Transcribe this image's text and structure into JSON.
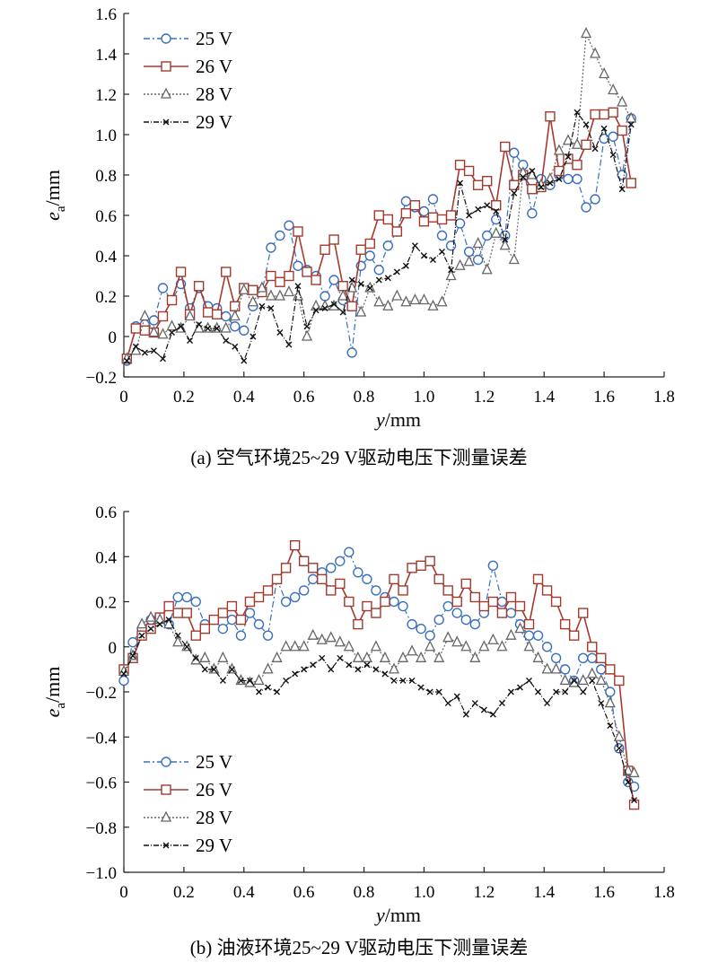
{
  "chart_data": [
    {
      "type": "line",
      "caption": "(a) 空气环境25~29 V驱动电压下测量误差",
      "xlabel": "y/mm",
      "ylabel": "e_a/mm",
      "xlim": [
        0,
        1.8
      ],
      "ylim": [
        -0.2,
        1.6
      ],
      "xticks": [
        "0",
        "0.2",
        "0.4",
        "0.6",
        "0.8",
        "1.0",
        "1.2",
        "1.4",
        "1.6",
        "1.8"
      ],
      "yticks": [
        "−0.2",
        "0",
        "0.2",
        "0.4",
        "0.6",
        "0.8",
        "1.0",
        "1.2",
        "1.4",
        "1.6"
      ],
      "legend_position": "top-left",
      "x": [
        0.01,
        0.04,
        0.07,
        0.1,
        0.13,
        0.16,
        0.19,
        0.22,
        0.25,
        0.28,
        0.31,
        0.34,
        0.37,
        0.4,
        0.43,
        0.46,
        0.49,
        0.52,
        0.55,
        0.58,
        0.61,
        0.64,
        0.67,
        0.7,
        0.73,
        0.76,
        0.79,
        0.82,
        0.85,
        0.88,
        0.91,
        0.94,
        0.97,
        1.0,
        1.03,
        1.06,
        1.09,
        1.12,
        1.15,
        1.18,
        1.21,
        1.24,
        1.27,
        1.3,
        1.33,
        1.36,
        1.39,
        1.42,
        1.45,
        1.48,
        1.51,
        1.54,
        1.57,
        1.6,
        1.63,
        1.66,
        1.69
      ],
      "series": [
        {
          "name": "25 V",
          "color": "#3a6fc0",
          "marker": "circle",
          "dash": "7,3,2,3",
          "values": [
            -0.12,
            0.05,
            0.06,
            0.08,
            0.24,
            0.18,
            0.26,
            0.14,
            0.24,
            0.15,
            0.14,
            0.1,
            0.05,
            0.03,
            0.15,
            0.22,
            0.44,
            0.5,
            0.55,
            0.35,
            0.33,
            0.3,
            0.2,
            0.28,
            0.18,
            -0.08,
            0.35,
            0.4,
            0.33,
            0.45,
            0.52,
            0.67,
            0.64,
            0.62,
            0.68,
            0.5,
            0.45,
            0.56,
            0.42,
            0.38,
            0.5,
            0.58,
            0.5,
            0.91,
            0.85,
            0.61,
            0.78,
            0.75,
            0.8,
            0.78,
            0.78,
            0.64,
            0.68,
            0.98,
            0.99,
            0.8,
            1.08
          ]
        },
        {
          "name": "26 V",
          "color": "#a33a2e",
          "marker": "square",
          "dash": "",
          "values": [
            -0.11,
            0.04,
            0.03,
            0.02,
            0.1,
            0.18,
            0.32,
            0.11,
            0.25,
            0.12,
            0.11,
            0.32,
            0.15,
            0.24,
            0.23,
            0.22,
            0.3,
            0.27,
            0.3,
            0.52,
            0.32,
            0.28,
            0.43,
            0.48,
            0.25,
            0.15,
            0.43,
            0.46,
            0.6,
            0.58,
            0.52,
            0.61,
            0.65,
            0.57,
            0.59,
            0.58,
            0.6,
            0.85,
            0.82,
            0.75,
            0.77,
            0.65,
            0.94,
            0.75,
            0.8,
            0.73,
            0.74,
            1.09,
            0.82,
            0.88,
            0.85,
            0.95,
            1.1,
            1.1,
            1.11,
            1.02,
            0.76
          ]
        },
        {
          "name": "28 V",
          "color": "#666666",
          "marker": "triangle",
          "dash": "2,2",
          "values": [
            -0.11,
            -0.07,
            0.1,
            0.02,
            0.01,
            0.05,
            0.04,
            0.1,
            0.04,
            0.04,
            0.04,
            0.04,
            0.1,
            0.23,
            0.17,
            0.24,
            0.2,
            0.2,
            0.22,
            0.2,
            0.0,
            0.15,
            0.15,
            0.15,
            0.2,
            0.24,
            0.12,
            0.24,
            0.17,
            0.15,
            0.2,
            0.17,
            0.18,
            0.18,
            0.15,
            0.17,
            0.3,
            0.35,
            0.37,
            0.46,
            0.33,
            0.51,
            0.45,
            0.38,
            0.81,
            0.8,
            0.75,
            0.78,
            0.92,
            0.97,
            0.95,
            1.5,
            1.4,
            1.3,
            1.22,
            1.16,
            1.08
          ]
        },
        {
          "name": "29 V",
          "color": "#111111",
          "marker": "x",
          "dash": "6,2,1,2",
          "values": [
            -0.12,
            -0.05,
            -0.08,
            -0.07,
            -0.11,
            0.02,
            0.05,
            -0.02,
            0.06,
            0.04,
            0.04,
            -0.02,
            -0.05,
            -0.12,
            0.0,
            0.15,
            0.14,
            0.02,
            -0.04,
            0.25,
            0.05,
            0.13,
            0.14,
            0.16,
            0.12,
            0.28,
            0.26,
            0.24,
            0.28,
            0.29,
            0.32,
            0.35,
            0.45,
            0.4,
            0.38,
            0.42,
            0.33,
            0.76,
            0.6,
            0.63,
            0.65,
            0.62,
            0.48,
            0.71,
            0.79,
            0.82,
            0.74,
            0.76,
            0.78,
            0.89,
            1.11,
            1.05,
            0.93,
            1.03,
            0.9,
            0.73,
            1.05
          ]
        }
      ]
    },
    {
      "type": "line",
      "caption": "(b) 油液环境25~29 V驱动电压下测量误差",
      "xlabel": "y/mm",
      "ylabel": "e_a/mm",
      "xlim": [
        0,
        1.8
      ],
      "ylim": [
        -1.0,
        0.6
      ],
      "xticks": [
        "0",
        "0.2",
        "0.4",
        "0.6",
        "0.8",
        "1.0",
        "1.2",
        "1.4",
        "1.6",
        "1.8"
      ],
      "yticks": [
        "−1.0",
        "−0.8",
        "−0.6",
        "−0.4",
        "−0.2",
        "0",
        "0.2",
        "0.4",
        "0.6"
      ],
      "legend_position": "bottom-left",
      "x": [
        0.0,
        0.03,
        0.06,
        0.09,
        0.12,
        0.15,
        0.18,
        0.21,
        0.24,
        0.27,
        0.3,
        0.33,
        0.36,
        0.39,
        0.42,
        0.45,
        0.48,
        0.51,
        0.54,
        0.57,
        0.6,
        0.63,
        0.66,
        0.69,
        0.72,
        0.75,
        0.78,
        0.81,
        0.84,
        0.87,
        0.9,
        0.93,
        0.96,
        0.99,
        1.02,
        1.05,
        1.08,
        1.11,
        1.14,
        1.17,
        1.2,
        1.23,
        1.26,
        1.29,
        1.32,
        1.35,
        1.38,
        1.41,
        1.44,
        1.47,
        1.5,
        1.53,
        1.56,
        1.59,
        1.62,
        1.65,
        1.68,
        1.7
      ],
      "series": [
        {
          "name": "25 V",
          "color": "#3a6fc0",
          "marker": "circle",
          "dash": "7,3,2,3",
          "values": [
            -0.15,
            0.02,
            0.08,
            0.12,
            0.13,
            0.1,
            0.22,
            0.22,
            0.2,
            0.1,
            0.12,
            0.08,
            0.12,
            0.05,
            0.15,
            0.1,
            0.05,
            0.3,
            0.2,
            0.22,
            0.25,
            0.3,
            0.33,
            0.35,
            0.38,
            0.42,
            0.33,
            0.3,
            0.25,
            0.22,
            0.2,
            0.18,
            0.1,
            0.08,
            0.05,
            0.12,
            0.18,
            0.15,
            0.12,
            0.1,
            0.15,
            0.36,
            0.2,
            0.15,
            0.1,
            0.05,
            0.05,
            0.0,
            -0.05,
            -0.1,
            -0.15,
            -0.05,
            -0.05,
            -0.1,
            -0.2,
            -0.45,
            -0.6,
            -0.62
          ]
        },
        {
          "name": "26 V",
          "color": "#a33a2e",
          "marker": "square",
          "dash": "",
          "values": [
            -0.1,
            -0.05,
            0.05,
            0.08,
            0.13,
            0.18,
            0.15,
            0.15,
            0.05,
            0.08,
            0.12,
            0.15,
            0.18,
            0.12,
            0.2,
            0.22,
            0.25,
            0.3,
            0.35,
            0.45,
            0.38,
            0.35,
            0.3,
            0.25,
            0.28,
            0.2,
            0.1,
            0.18,
            0.15,
            0.2,
            0.3,
            0.25,
            0.35,
            0.36,
            0.38,
            0.3,
            0.25,
            0.2,
            0.28,
            0.22,
            0.18,
            0.2,
            0.15,
            0.22,
            0.18,
            0.1,
            0.3,
            0.25,
            0.2,
            0.1,
            0.05,
            0.15,
            0.0,
            -0.05,
            -0.1,
            -0.15,
            -0.55,
            -0.7
          ]
        },
        {
          "name": "28 V",
          "color": "#666666",
          "marker": "triangle",
          "dash": "2,2",
          "values": [
            -0.11,
            -0.04,
            0.1,
            0.13,
            0.12,
            0.1,
            0.02,
            0.0,
            -0.06,
            -0.05,
            -0.1,
            -0.05,
            -0.1,
            -0.15,
            -0.16,
            -0.15,
            -0.1,
            -0.05,
            0.0,
            0.0,
            0.0,
            0.05,
            0.03,
            0.04,
            0.02,
            0.0,
            -0.05,
            -0.05,
            0.0,
            -0.05,
            -0.1,
            -0.05,
            -0.02,
            -0.05,
            0.0,
            -0.05,
            0.04,
            0.02,
            0.0,
            -0.05,
            0.0,
            0.03,
            0.0,
            0.05,
            0.08,
            0.0,
            -0.05,
            -0.1,
            -0.1,
            -0.15,
            -0.16,
            -0.15,
            -0.12,
            -0.15,
            -0.25,
            -0.4,
            -0.55,
            -0.56
          ]
        },
        {
          "name": "29 V",
          "color": "#111111",
          "marker": "x",
          "dash": "6,2,1,2",
          "values": [
            -0.12,
            -0.04,
            0.05,
            0.08,
            0.1,
            0.12,
            0.05,
            0.0,
            -0.05,
            -0.1,
            -0.1,
            -0.15,
            -0.1,
            -0.15,
            -0.15,
            -0.2,
            -0.18,
            -0.2,
            -0.15,
            -0.12,
            -0.1,
            -0.08,
            -0.05,
            -0.1,
            -0.05,
            -0.08,
            -0.1,
            -0.08,
            -0.1,
            -0.12,
            -0.15,
            -0.15,
            -0.15,
            -0.18,
            -0.2,
            -0.2,
            -0.25,
            -0.22,
            -0.3,
            -0.25,
            -0.28,
            -0.3,
            -0.25,
            -0.2,
            -0.18,
            -0.15,
            -0.2,
            -0.25,
            -0.2,
            -0.2,
            -0.15,
            -0.2,
            -0.15,
            -0.25,
            -0.35,
            -0.45,
            -0.6,
            -0.68
          ]
        }
      ]
    }
  ]
}
